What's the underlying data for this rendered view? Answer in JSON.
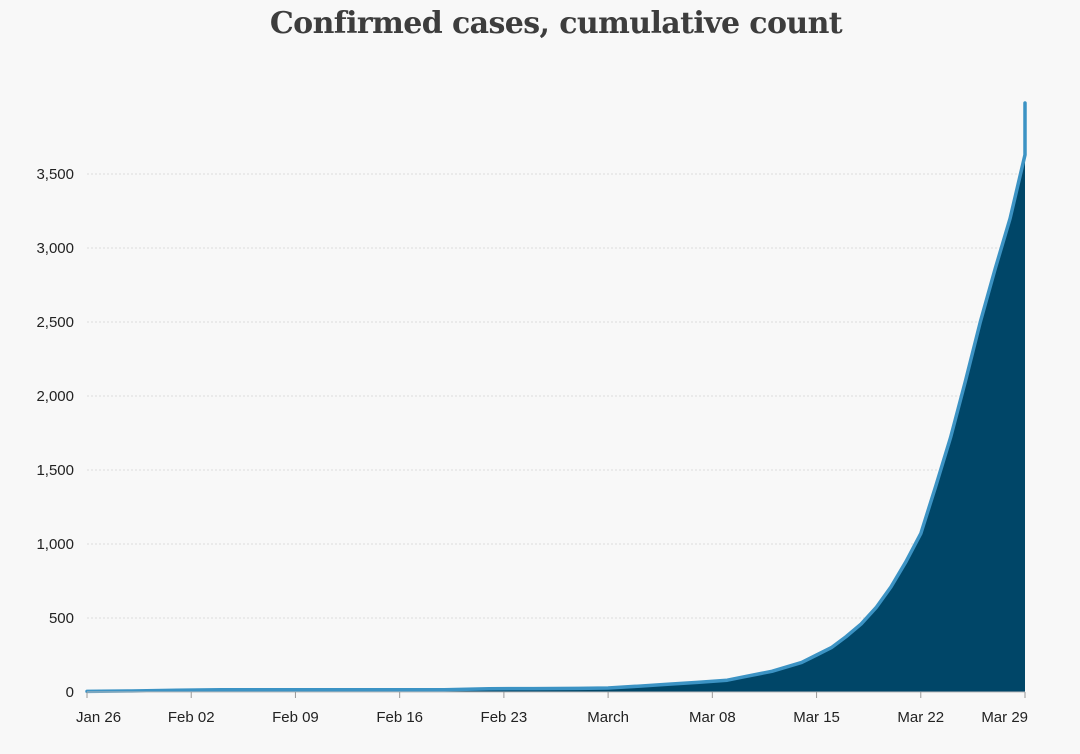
{
  "chart_data": {
    "type": "area",
    "title": "Confirmed cases, cumulative count",
    "xlabel": "",
    "ylabel": "",
    "x_start": "2020-01-26",
    "x_end": "2020-03-29",
    "ylim": [
      0,
      4000
    ],
    "yticks": [
      0,
      500,
      1000,
      1500,
      2000,
      2500,
      3000,
      3500
    ],
    "y_tick_labels": [
      "0",
      "500",
      "1,000",
      "1,500",
      "2,000",
      "2,500",
      "3,000",
      "3,500"
    ],
    "x_ticks": [
      {
        "date": "2020-01-26",
        "label": "Jan 26"
      },
      {
        "date": "2020-02-02",
        "label": "Feb 02"
      },
      {
        "date": "2020-02-09",
        "label": "Feb 09"
      },
      {
        "date": "2020-02-16",
        "label": "Feb 16"
      },
      {
        "date": "2020-02-23",
        "label": "Feb 23"
      },
      {
        "date": "2020-03-01",
        "label": "March"
      },
      {
        "date": "2020-03-08",
        "label": "Mar 08"
      },
      {
        "date": "2020-03-15",
        "label": "Mar 15"
      },
      {
        "date": "2020-03-22",
        "label": "Mar 22"
      },
      {
        "date": "2020-03-29",
        "label": "Mar 29"
      }
    ],
    "grid": true,
    "colors": {
      "area_fill": "#004668",
      "line": "#3c93c4",
      "grid": "#dcdcdc"
    },
    "points": [
      {
        "x": "2020-01-26",
        "y": 4
      },
      {
        "x": "2020-01-29",
        "y": 7
      },
      {
        "x": "2020-02-01",
        "y": 12
      },
      {
        "x": "2020-02-04",
        "y": 15
      },
      {
        "x": "2020-02-07",
        "y": 15
      },
      {
        "x": "2020-02-10",
        "y": 15
      },
      {
        "x": "2020-02-13",
        "y": 15
      },
      {
        "x": "2020-02-16",
        "y": 15
      },
      {
        "x": "2020-02-19",
        "y": 15
      },
      {
        "x": "2020-02-22",
        "y": 22
      },
      {
        "x": "2020-02-25",
        "y": 23
      },
      {
        "x": "2020-02-28",
        "y": 24
      },
      {
        "x": "2020-03-01",
        "y": 27
      },
      {
        "x": "2020-03-03",
        "y": 39
      },
      {
        "x": "2020-03-05",
        "y": 53
      },
      {
        "x": "2020-03-07",
        "y": 65
      },
      {
        "x": "2020-03-09",
        "y": 80
      },
      {
        "x": "2020-03-10",
        "y": 100
      },
      {
        "x": "2020-03-12",
        "y": 140
      },
      {
        "x": "2020-03-14",
        "y": 200
      },
      {
        "x": "2020-03-15",
        "y": 250
      },
      {
        "x": "2020-03-16",
        "y": 300
      },
      {
        "x": "2020-03-17",
        "y": 375
      },
      {
        "x": "2020-03-18",
        "y": 460
      },
      {
        "x": "2020-03-19",
        "y": 570
      },
      {
        "x": "2020-03-20",
        "y": 710
      },
      {
        "x": "2020-03-21",
        "y": 880
      },
      {
        "x": "2020-03-22",
        "y": 1070
      },
      {
        "x": "2020-03-23",
        "y": 1390
      },
      {
        "x": "2020-03-24",
        "y": 1720
      },
      {
        "x": "2020-03-25",
        "y": 2100
      },
      {
        "x": "2020-03-26",
        "y": 2500
      },
      {
        "x": "2020-03-27",
        "y": 2860
      },
      {
        "x": "2020-03-28",
        "y": 3200
      },
      {
        "x": "2020-03-29",
        "y": 3630
      },
      {
        "x": "2020-03-30",
        "y": 3980
      }
    ]
  }
}
